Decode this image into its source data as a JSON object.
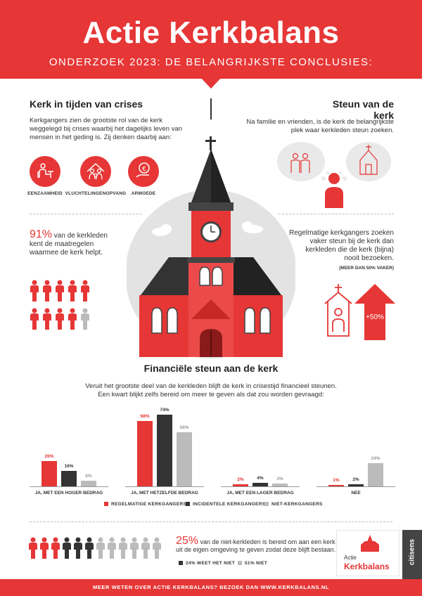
{
  "header": {
    "title": "Actie Kerkbalans",
    "subtitle": "ONDERZOEK 2023: DE BELANGRIJKSTE CONCLUSIES:"
  },
  "crises": {
    "title": "Kerk in tijden van crises",
    "lines": [
      "Kerkgangers zien de grootste rol van de kerk",
      "weggelegd bij crises waarbij het dagelijks leven van",
      "mensen in het geding is. Zij denken daarbij aan:"
    ],
    "icons": [
      {
        "label": "EENZAAMHEID",
        "icon": "lonely-person-icon"
      },
      {
        "label": "VLUCHTELINGENOPVANG",
        "icon": "refugees-icon"
      },
      {
        "label": "ARMOEDE",
        "icon": "euro-icon"
      }
    ]
  },
  "steun": {
    "title": "Steun van de kerk",
    "lines": [
      "Na familie en vrienden, is de kerk de belangrijkste",
      "plek waar kerkleden steun zoeken."
    ]
  },
  "maatregelen": {
    "pct": "91%",
    "lines": [
      " van de kerkleden",
      "kent de maatregelen",
      "waarmee de kerk helpt."
    ],
    "filled_of_total": [
      9,
      10
    ]
  },
  "regelmatig": {
    "lines": [
      "Regelmatige kerkgangers zoeken",
      "vaker steun bij de kerk dan",
      "kerkleden die de kerk (bijna)",
      "nooit bezoeken."
    ],
    "note": "(MEER DAN 50% VAKER)",
    "arrow_label": "+50%"
  },
  "financieel": {
    "title": "Financiële steun aan de kerk",
    "lines": [
      "Veruit het grootste deel van de kerkleden blijft de kerk in crisestijd financieel steunen.",
      "Een kwart blijkt zelfs bereid om meer te geven als dat zou worden gevraagd:"
    ]
  },
  "chart_data": {
    "type": "bar",
    "categories": [
      "JA, MET EEN HOGER BEDRAG",
      "JA, MET HETZELFDE BEDRAG",
      "JA, MET EEN LAGER BEDRAG",
      "NEE"
    ],
    "series": [
      {
        "name": "REGELMATIGE KERKGANGERS",
        "values": [
          26,
          68,
          2,
          1
        ],
        "color": "#e63636"
      },
      {
        "name": "INCIDENTELE KERKGANGERS",
        "values": [
          16,
          74,
          4,
          2
        ],
        "color": "#333333"
      },
      {
        "name": "NIET-KERKGANGERS",
        "values": [
          6,
          56,
          3,
          24
        ],
        "color": "#bbbbbb"
      }
    ],
    "value_labels": [
      [
        "26%",
        "16%",
        "6%"
      ],
      [
        "68%",
        "74%",
        "56%"
      ],
      [
        "2%",
        "4%",
        "3%"
      ],
      [
        "1%",
        "2%",
        "24%"
      ]
    ],
    "ylim": [
      0,
      80
    ],
    "legend": "bottom"
  },
  "niet_kerkleden": {
    "pct": "25%",
    "lines": [
      " van de niet-kerkleden is bereid om aan een kerk",
      "uit de eigen omgeving te geven zodat deze blijft bestaan."
    ],
    "legend": [
      {
        "label": "24% WEET HET NIET",
        "color": "#333333"
      },
      {
        "label": "51% NIET",
        "color": "#bbbbbb"
      }
    ],
    "people_colors": [
      "#e63636",
      "#e63636",
      "#e63636",
      "#333333",
      "#333333",
      "#333333",
      "#bbbbbb",
      "#bbbbbb",
      "#bbbbbb",
      "#bbbbbb",
      "#bbbbbb",
      "#bbbbbb"
    ]
  },
  "logo": {
    "line1": "Actie",
    "line2": "Kerkbalans"
  },
  "side": {
    "text": "citisens"
  },
  "footer": {
    "text": "MEER WETEN OVER ACTIE KERKBALANS? BEZOEK DAN WWW.KERKBALANS.NL"
  },
  "colors": {
    "accent": "#e63636",
    "dark": "#333333",
    "grey": "#bbbbbb"
  }
}
